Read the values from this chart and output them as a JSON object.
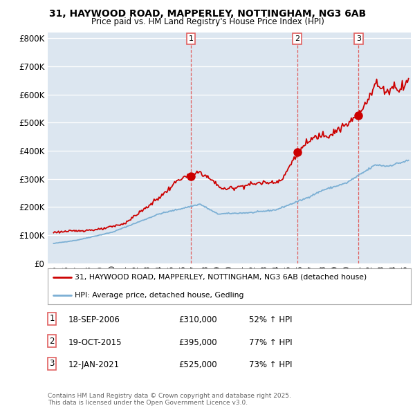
{
  "title_line1": "31, HAYWOOD ROAD, MAPPERLEY, NOTTINGHAM, NG3 6AB",
  "title_line2": "Price paid vs. HM Land Registry's House Price Index (HPI)",
  "background_color": "#ffffff",
  "plot_bg_color": "#dce6f0",
  "grid_color": "#ffffff",
  "red_line_color": "#cc0000",
  "blue_line_color": "#7bafd4",
  "sale_marker_color": "#cc0000",
  "vline_color": "#e06060",
  "sales": [
    {
      "date_num": 2006.72,
      "price": 310000,
      "label": "1"
    },
    {
      "date_num": 2015.8,
      "price": 395000,
      "label": "2"
    },
    {
      "date_num": 2021.04,
      "price": 525000,
      "label": "3"
    }
  ],
  "sale_dates": [
    "18-SEP-2006",
    "19-OCT-2015",
    "12-JAN-2021"
  ],
  "sale_prices": [
    "£310,000",
    "£395,000",
    "£525,000"
  ],
  "sale_hpi": [
    "52% ↑ HPI",
    "77% ↑ HPI",
    "73% ↑ HPI"
  ],
  "legend_red": "31, HAYWOOD ROAD, MAPPERLEY, NOTTINGHAM, NG3 6AB (detached house)",
  "legend_blue": "HPI: Average price, detached house, Gedling",
  "footnote": "Contains HM Land Registry data © Crown copyright and database right 2025.\nThis data is licensed under the Open Government Licence v3.0.",
  "ylim": [
    0,
    820000
  ],
  "xlim_start": 1994.5,
  "xlim_end": 2025.5,
  "yticks": [
    0,
    100000,
    200000,
    300000,
    400000,
    500000,
    600000,
    700000,
    800000
  ],
  "ytick_labels": [
    "£0",
    "£100K",
    "£200K",
    "£300K",
    "£400K",
    "£500K",
    "£600K",
    "£700K",
    "£800K"
  ]
}
